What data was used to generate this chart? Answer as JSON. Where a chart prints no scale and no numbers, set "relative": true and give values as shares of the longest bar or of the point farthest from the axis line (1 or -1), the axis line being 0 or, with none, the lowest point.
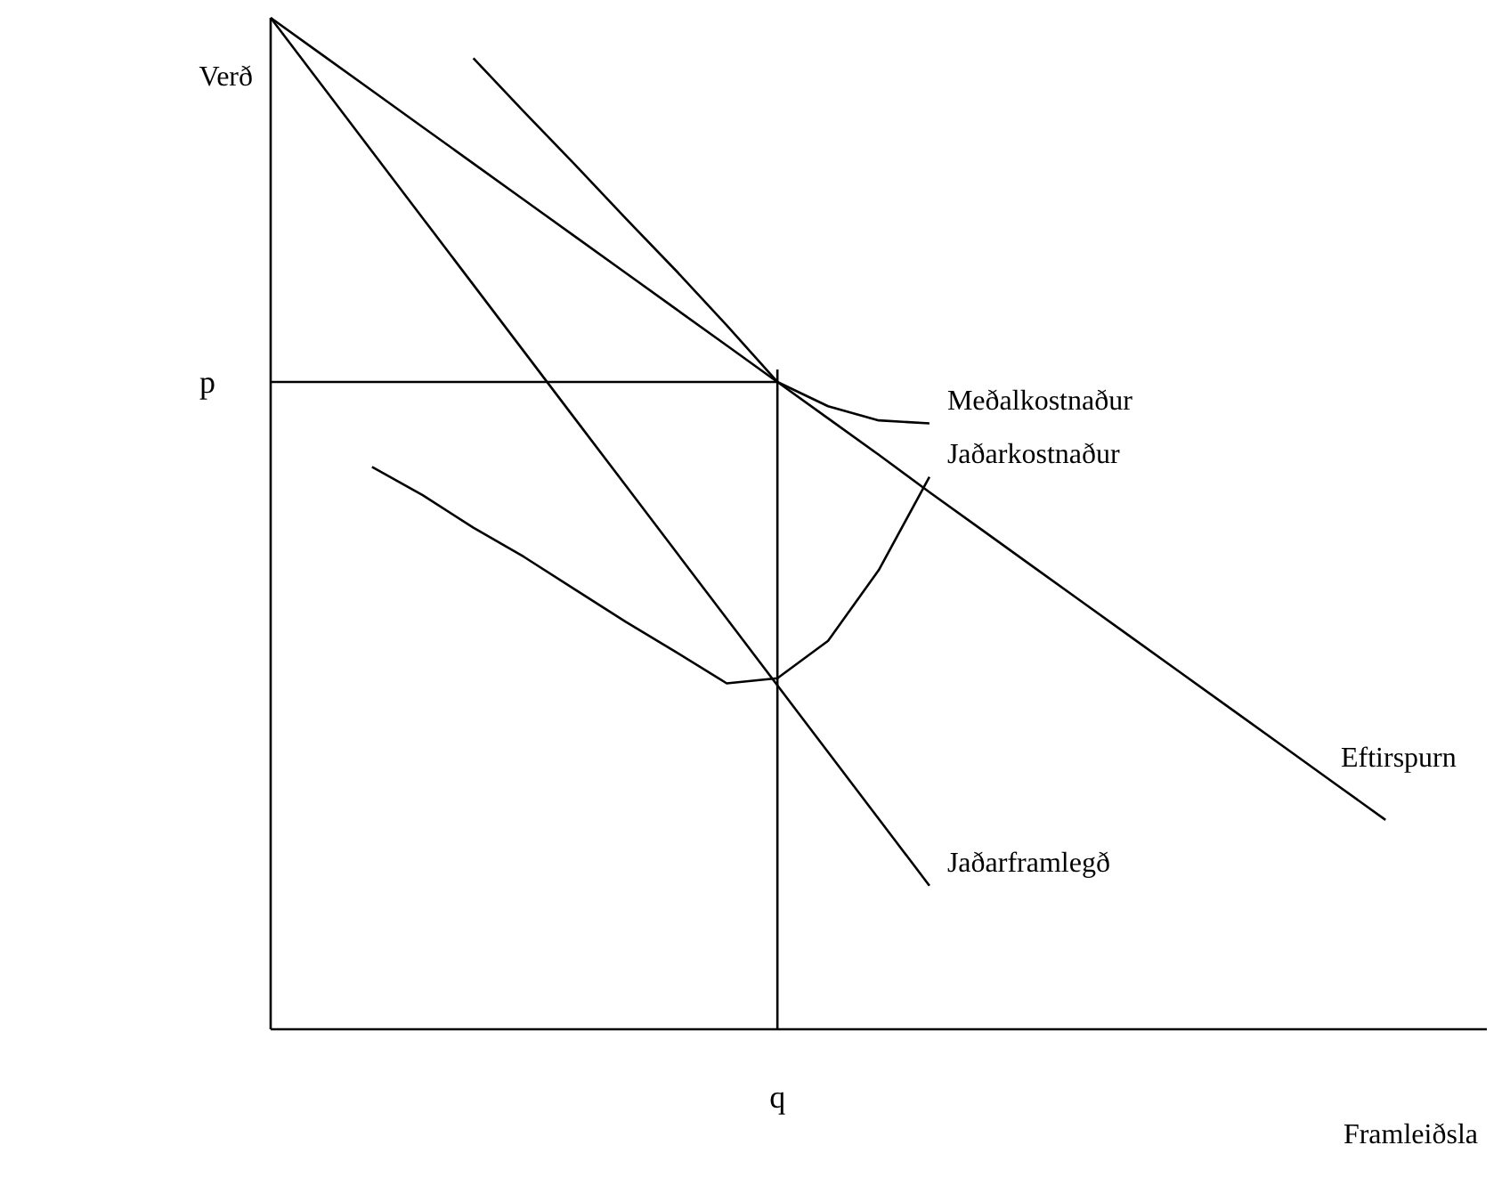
{
  "chart_data": {
    "type": "line",
    "relative": true,
    "xlabel": "Framleiðsla",
    "ylabel": "Verð",
    "legend": false,
    "marker": "none",
    "line_style": "solid",
    "categories": [
      null,
      null,
      null,
      null,
      null,
      null,
      null,
      null,
      null,
      null,
      null,
      null,
      null,
      null,
      null,
      null,
      null,
      null,
      null,
      null,
      null,
      null,
      null,
      null,
      null
    ],
    "series": [
      {
        "name": "Eftirspurn",
        "color": "#000000",
        "values": [
          1,
          0.964,
          0.928,
          0.892,
          0.856,
          0.82,
          0.784,
          0.748,
          0.712,
          0.676,
          0.64,
          0.604,
          0.568,
          0.531,
          0.495,
          0.459,
          0.423,
          0.387,
          0.351,
          0.315,
          0.279,
          0.243,
          0.207,
          null,
          null
        ]
      },
      {
        "name": "Jaðarframlegð",
        "color": "#000000",
        "values": [
          1,
          0.934,
          0.868,
          0.802,
          0.736,
          0.67,
          0.604,
          0.538,
          0.472,
          0.406,
          0.34,
          0.274,
          0.208,
          0.142,
          null,
          null,
          null,
          null,
          null,
          null,
          null,
          null,
          null,
          null,
          null
        ]
      },
      {
        "name": "Meðalkostnaður",
        "color": "#000000",
        "values": [
          null,
          null,
          null,
          null,
          0.96,
          0.907,
          0.855,
          0.802,
          0.75,
          0.696,
          0.64,
          0.616,
          0.602,
          0.599,
          null,
          null,
          null,
          null,
          null,
          null,
          null,
          null,
          null,
          null,
          null
        ]
      },
      {
        "name": "Jaðarkostnaður",
        "color": "#000000",
        "values": [
          null,
          null,
          0.556,
          0.528,
          0.496,
          0.467,
          0.435,
          0.403,
          0.373,
          0.342,
          0.347,
          0.384,
          0.454,
          0.546,
          null,
          null,
          null,
          null,
          null,
          null,
          null,
          null,
          null,
          null,
          null
        ]
      }
    ],
    "ref_lines": [
      {
        "axis": "y",
        "value": 0.64,
        "label": "p"
      }
    ],
    "annotations": [
      "q"
    ]
  }
}
